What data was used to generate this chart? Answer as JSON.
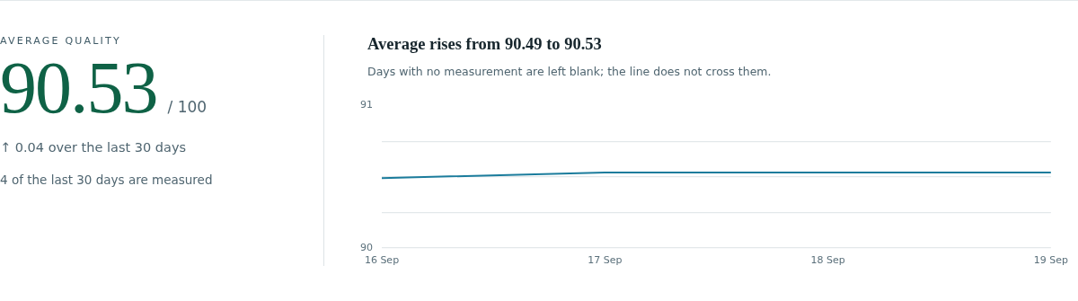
{
  "chart_data": [
    {
      "type": "other",
      "title": "AVERAGE QUALITY",
      "annotations": [
        "90.53",
        "/ 100",
        "↑ 0.04 over the last 30 days",
        "4 of the last 30 days are measured"
      ]
    },
    {
      "type": "line",
      "title": "Average rises from 90.49 to 90.53",
      "subtitle": "Days with no measurement are left blank; the line does not cross them.",
      "x": [
        "--09-16",
        "--09-17",
        "--09-18",
        "--09-19"
      ],
      "series": [
        {
          "color": "#1b7c9c",
          "values": [
            90.49,
            90.53,
            90.53,
            90.53
          ]
        }
      ],
      "xlim": [
        "--09-16",
        "--09-19"
      ],
      "xticks": [
        {
          "value": "--09-16",
          "label": "16 Sep"
        },
        {
          "value": "--09-17",
          "label": "17 Sep"
        },
        {
          "value": "--09-18",
          "label": "18 Sep"
        },
        {
          "value": "--09-19",
          "label": "19 Sep"
        }
      ],
      "ylim": [
        90,
        91
      ],
      "yticks": [
        90,
        {
          "value": 90.25,
          "label": null
        },
        {
          "value": 90.5,
          "label": null
        },
        {
          "value": 90.75,
          "label": null
        },
        91
      ],
      "grid": "y",
      "legend": false,
      "marker": "none",
      "line_style": "solid"
    }
  ]
}
